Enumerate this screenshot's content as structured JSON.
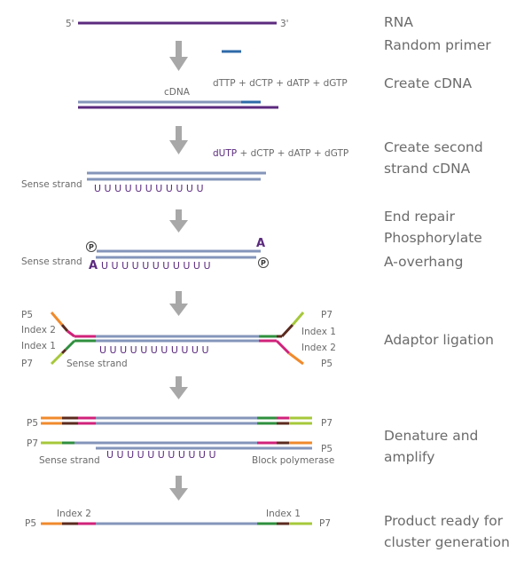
{
  "colors": {
    "rna": "#5b2a7e",
    "dna": "#8495ba",
    "primer": "#2f6aa8",
    "arrow": "#a8a8a8",
    "p5": "#f08a2c",
    "index2": "#d0227a",
    "index1": "#2f8f3e",
    "p7": "#a6c83a",
    "linker": "#5b2a1e",
    "label": "#6a6a6a",
    "step_text": "#6b6b6b"
  },
  "steps": {
    "rna": "RNA",
    "random_primer": "Random primer",
    "create_cdna": "Create cDNA",
    "second_strand_1": "Create second",
    "second_strand_2": "strand cDNA",
    "end_repair": "End repair",
    "phosphorylate": "Phosphorylate",
    "a_overhang": "A-overhang",
    "adaptor_ligation": "Adaptor ligation",
    "denature_1": "Denature and",
    "denature_2": "amplify",
    "product_1": "Product ready for",
    "product_2": "cluster generation"
  },
  "labels": {
    "five_prime": "5'",
    "three_prime": "3'",
    "cdna": "cDNA",
    "dntp_first": "dTTP + dCTP + dATP + dGTP",
    "dutp": "dUTP",
    "dntp_second_rest": " + dCTP + dATP + dGTP",
    "sense_strand": "Sense strand",
    "uracils": "U U U  U U U U  U  U U  U",
    "A": "A",
    "P": "P",
    "p5": "P5",
    "p7": "P7",
    "index1": "Index 1",
    "index2": "Index 2",
    "block_polymerase": "Block polymerase"
  }
}
